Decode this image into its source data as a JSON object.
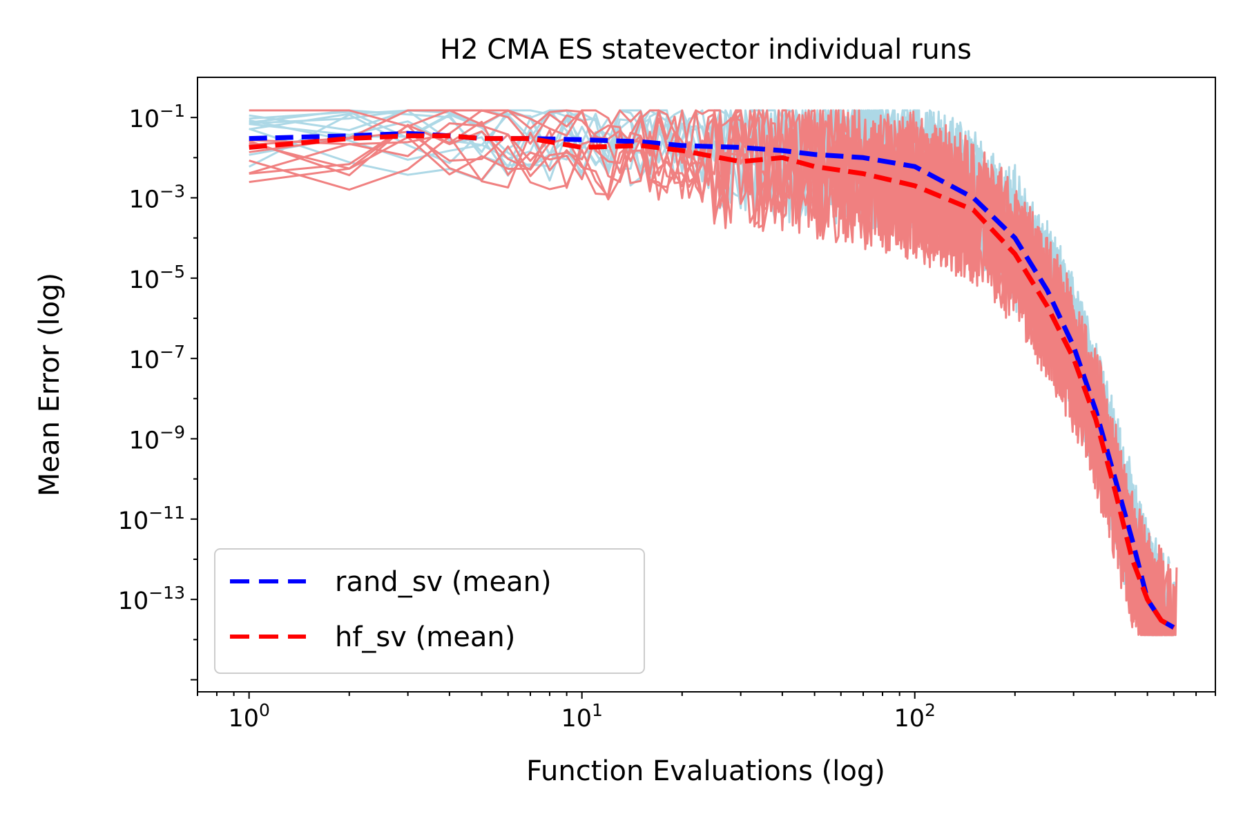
{
  "chart_data": {
    "type": "line",
    "title": "H2 CMA ES statevector individual runs",
    "xlabel": "Function Evaluations (log)",
    "ylabel": "Mean Error (log)",
    "xscale": "log",
    "yscale": "log",
    "xlim": [
      0.7,
      800
    ],
    "ylim": [
      5e-16,
      1.0
    ],
    "x_ticks": [
      {
        "value": 1,
        "base": "10",
        "exp": "0"
      },
      {
        "value": 10,
        "base": "10",
        "exp": "1"
      },
      {
        "value": 100,
        "base": "10",
        "exp": "2"
      }
    ],
    "y_ticks": [
      {
        "value": 0.1,
        "base": "10",
        "exp": "−1"
      },
      {
        "value": 0.001,
        "base": "10",
        "exp": "−3"
      },
      {
        "value": 1e-05,
        "base": "10",
        "exp": "−5"
      },
      {
        "value": 1e-07,
        "base": "10",
        "exp": "−7"
      },
      {
        "value": 1e-09,
        "base": "10",
        "exp": "−9"
      },
      {
        "value": 1e-11,
        "base": "10",
        "exp": "−11"
      },
      {
        "value": 1e-13,
        "base": "10",
        "exp": "−13"
      }
    ],
    "grid": false,
    "legend": {
      "position": "lower-left",
      "entries": [
        {
          "label": "rand_sv (mean)",
          "color": "#0000ff",
          "style": "dashed"
        },
        {
          "label": "hf_sv (mean)",
          "color": "#ff0000",
          "style": "dashed"
        }
      ]
    },
    "individual_runs": [
      {
        "group": "rand_sv",
        "color": "#add8e6",
        "count": 10,
        "x_range": [
          1,
          620
        ]
      },
      {
        "group": "hf_sv",
        "color": "#f08080",
        "count": 10,
        "x_range": [
          1,
          620
        ]
      }
    ],
    "series": [
      {
        "name": "rand_sv (mean)",
        "color": "#0000ff",
        "style": "dashed",
        "x": [
          1,
          2,
          3,
          4,
          5,
          7,
          10,
          15,
          20,
          30,
          40,
          50,
          70,
          100,
          150,
          200,
          250,
          300,
          350,
          400,
          450,
          500,
          550,
          600
        ],
        "y": [
          0.03,
          0.035,
          0.04,
          0.035,
          0.03,
          0.03,
          0.028,
          0.025,
          0.02,
          0.018,
          0.015,
          0.012,
          0.01,
          0.006,
          0.001,
          0.0001,
          5e-06,
          2e-07,
          5e-09,
          1e-10,
          3e-12,
          1e-13,
          3e-14,
          2e-14
        ]
      },
      {
        "name": "hf_sv (mean)",
        "color": "#ff0000",
        "style": "dashed",
        "x": [
          1,
          2,
          3,
          4,
          5,
          7,
          10,
          15,
          20,
          30,
          40,
          50,
          70,
          100,
          150,
          200,
          250,
          300,
          350,
          400,
          450,
          500,
          550,
          600
        ],
        "y": [
          0.018,
          0.03,
          0.035,
          0.035,
          0.03,
          0.03,
          0.018,
          0.02,
          0.015,
          0.008,
          0.01,
          0.006,
          0.004,
          0.002,
          0.0005,
          4e-05,
          2e-06,
          1e-07,
          3e-09,
          5e-11,
          1e-12,
          1e-13,
          3e-14,
          2e-14
        ]
      }
    ]
  }
}
